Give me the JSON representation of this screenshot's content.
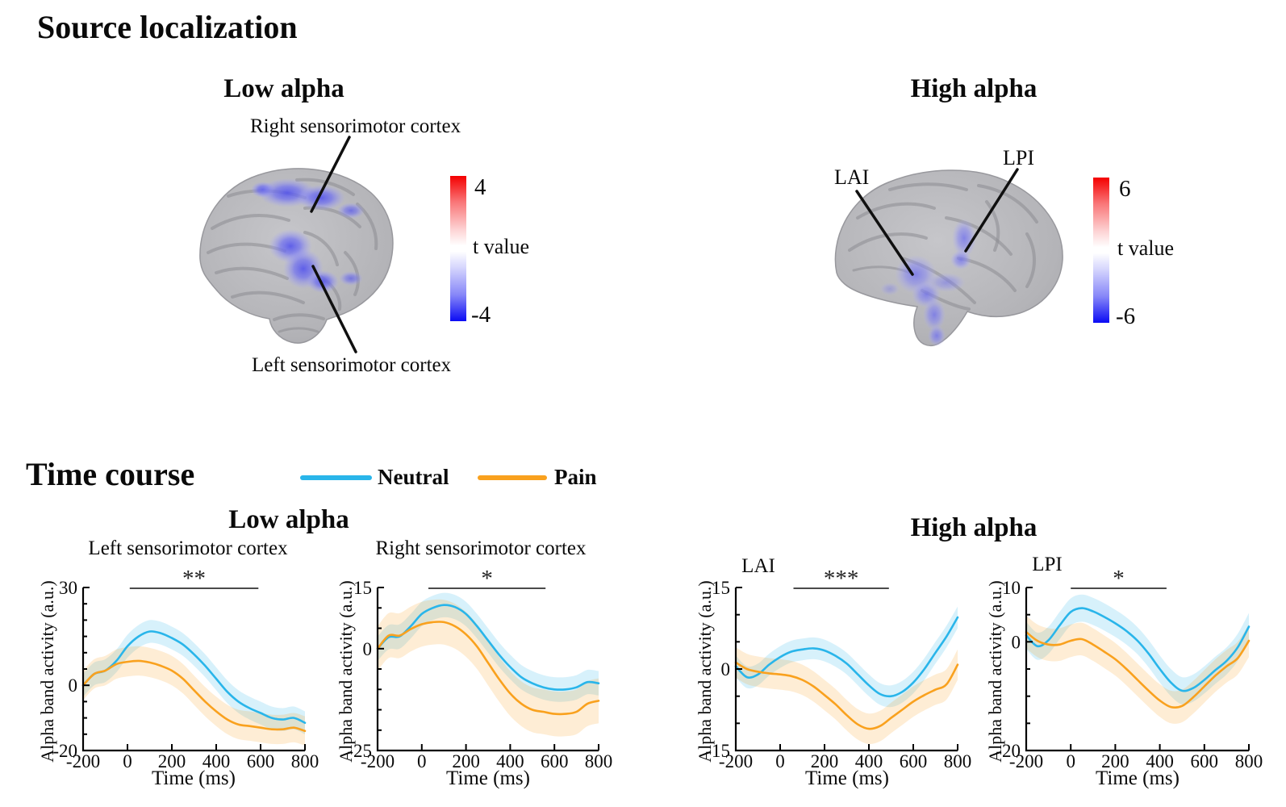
{
  "source_localization": {
    "title": "Source localization",
    "low_alpha": {
      "heading": "Low alpha",
      "region_label_top": "Right sensorimotor cortex",
      "region_label_bottom": "Left sensorimotor cortex",
      "colorbar": {
        "max": "4",
        "label": "t value",
        "min": "-4"
      }
    },
    "high_alpha": {
      "heading": "High alpha",
      "region_label_lai": "LAI",
      "region_label_lpi": "LPI",
      "colorbar": {
        "max": "6",
        "label": "t value",
        "min": "-6"
      }
    }
  },
  "time_course": {
    "title": "Time course",
    "low_alpha_heading": "Low alpha",
    "high_alpha_heading": "High alpha",
    "legend": {
      "neutral": {
        "label": "Neutral",
        "color": "#29b5ea"
      },
      "pain": {
        "label": "Pain",
        "color": "#f9a11e"
      }
    }
  },
  "chart_data": [
    {
      "type": "line",
      "group": "Low alpha",
      "title": "Left sensorimotor cortex",
      "xlabel": "Time (ms)",
      "ylabel": "Alpha band activity (a.u.)",
      "xlim": [
        -200,
        800
      ],
      "ylim": [
        -20,
        30
      ],
      "xticks": [
        -200,
        0,
        200,
        400,
        600,
        800
      ],
      "yticks": [
        30,
        0,
        -20
      ],
      "significance": {
        "marker": "**",
        "from_ms": 10,
        "to_ms": 590
      },
      "x": [
        -200,
        -150,
        -100,
        -50,
        0,
        50,
        100,
        150,
        200,
        250,
        300,
        350,
        400,
        450,
        500,
        550,
        600,
        650,
        700,
        750,
        800
      ],
      "series": [
        {
          "name": "Neutral",
          "color": "#29b5ea",
          "band": 3.5,
          "values": [
            0,
            3.5,
            4.5,
            7.5,
            12,
            15,
            16.5,
            16,
            14.5,
            12.5,
            9.5,
            6,
            2,
            -2,
            -5,
            -7,
            -8.5,
            -10,
            -10.5,
            -10,
            -11.5
          ]
        },
        {
          "name": "Pain",
          "color": "#f9a11e",
          "band": 4.5,
          "values": [
            0,
            3.5,
            4.5,
            6.5,
            7.2,
            7.5,
            7,
            6,
            4.5,
            2,
            -1.5,
            -5,
            -8,
            -10.5,
            -12,
            -12.5,
            -13,
            -13.5,
            -13.5,
            -13,
            -14
          ]
        }
      ]
    },
    {
      "type": "line",
      "group": "Low alpha",
      "title": "Right sensorimotor cortex",
      "xlabel": "Time (ms)",
      "ylabel": "Alpha band activity (a.u.)",
      "xlim": [
        -200,
        800
      ],
      "ylim": [
        -25,
        15
      ],
      "xticks": [
        -200,
        0,
        200,
        400,
        600,
        800
      ],
      "yticks": [
        15,
        0,
        -25
      ],
      "significance": {
        "marker": "*",
        "from_ms": 30,
        "to_ms": 560
      },
      "x": [
        -200,
        -150,
        -100,
        -50,
        0,
        50,
        100,
        150,
        200,
        250,
        300,
        350,
        400,
        450,
        500,
        550,
        600,
        650,
        700,
        750,
        800
      ],
      "series": [
        {
          "name": "Neutral",
          "color": "#29b5ea",
          "band": 3.0,
          "values": [
            0,
            2.8,
            3,
            5.5,
            8.5,
            10,
            10.7,
            10.2,
            8.5,
            5.5,
            2,
            -1.5,
            -4.5,
            -7,
            -8.5,
            -9.5,
            -10,
            -10,
            -9.5,
            -8.2,
            -8.5
          ]
        },
        {
          "name": "Pain",
          "color": "#f9a11e",
          "band": 5.5,
          "values": [
            0,
            3.2,
            3.2,
            4.8,
            6,
            6.5,
            6.5,
            5.5,
            3.5,
            0.5,
            -3.5,
            -7.5,
            -11,
            -13.5,
            -15,
            -15.5,
            -16,
            -16,
            -15.5,
            -13.5,
            -12.8
          ]
        }
      ]
    },
    {
      "type": "line",
      "group": "High alpha",
      "title": "LAI",
      "xlabel": "Time (ms)",
      "ylabel": "Alpha band activity (a.u.)",
      "xlim": [
        -200,
        800
      ],
      "ylim": [
        -15,
        15
      ],
      "xticks": [
        -200,
        0,
        200,
        400,
        600,
        800
      ],
      "yticks": [
        15,
        0,
        -15
      ],
      "significance": {
        "marker": "***",
        "from_ms": 60,
        "to_ms": 490
      },
      "x": [
        -200,
        -150,
        -100,
        -50,
        0,
        50,
        100,
        150,
        200,
        250,
        300,
        350,
        400,
        450,
        500,
        550,
        600,
        650,
        700,
        750,
        800
      ],
      "series": [
        {
          "name": "Neutral",
          "color": "#29b5ea",
          "band": 2.0,
          "values": [
            0.5,
            -1.5,
            -1,
            0.8,
            2.2,
            3.2,
            3.6,
            3.8,
            3.4,
            2.4,
            1,
            -1,
            -3,
            -4.6,
            -5,
            -4.2,
            -2.5,
            0,
            3,
            6,
            9.5
          ]
        },
        {
          "name": "Pain",
          "color": "#f9a11e",
          "band": 2.8,
          "values": [
            1.2,
            0,
            -0.5,
            -0.8,
            -1,
            -1.3,
            -2,
            -3.2,
            -4.8,
            -6.5,
            -8.5,
            -10.2,
            -11,
            -10.5,
            -9,
            -7.5,
            -6,
            -4.8,
            -3.8,
            -2.8,
            0.8
          ]
        }
      ]
    },
    {
      "type": "line",
      "group": "High alpha",
      "title": "LPI",
      "xlabel": "Time (ms)",
      "ylabel": "Alpha band activity (a.u.)",
      "xlim": [
        -200,
        800
      ],
      "ylim": [
        -20,
        10
      ],
      "xticks": [
        -200,
        0,
        200,
        400,
        600,
        800
      ],
      "yticks": [
        10,
        0,
        -20
      ],
      "significance": {
        "marker": "*",
        "from_ms": 0,
        "to_ms": 430
      },
      "x": [
        -200,
        -150,
        -100,
        -50,
        0,
        50,
        100,
        150,
        200,
        250,
        300,
        350,
        400,
        450,
        500,
        550,
        600,
        650,
        700,
        750,
        800
      ],
      "series": [
        {
          "name": "Neutral",
          "color": "#29b5ea",
          "band": 2.5,
          "values": [
            1.2,
            -0.8,
            0.3,
            3,
            5.5,
            6.2,
            5.6,
            4.6,
            3.4,
            2,
            0.2,
            -2.2,
            -5,
            -7.5,
            -9,
            -8.5,
            -7,
            -5.2,
            -3.5,
            -1,
            2.8
          ]
        },
        {
          "name": "Pain",
          "color": "#f9a11e",
          "band": 3.0,
          "values": [
            1.8,
            0.2,
            -0.5,
            -0.5,
            0.2,
            0.5,
            -0.5,
            -1.8,
            -3.2,
            -5,
            -7,
            -9,
            -10.8,
            -12,
            -11.8,
            -10.2,
            -8.2,
            -6.2,
            -4.5,
            -3,
            0.2
          ]
        }
      ]
    }
  ]
}
